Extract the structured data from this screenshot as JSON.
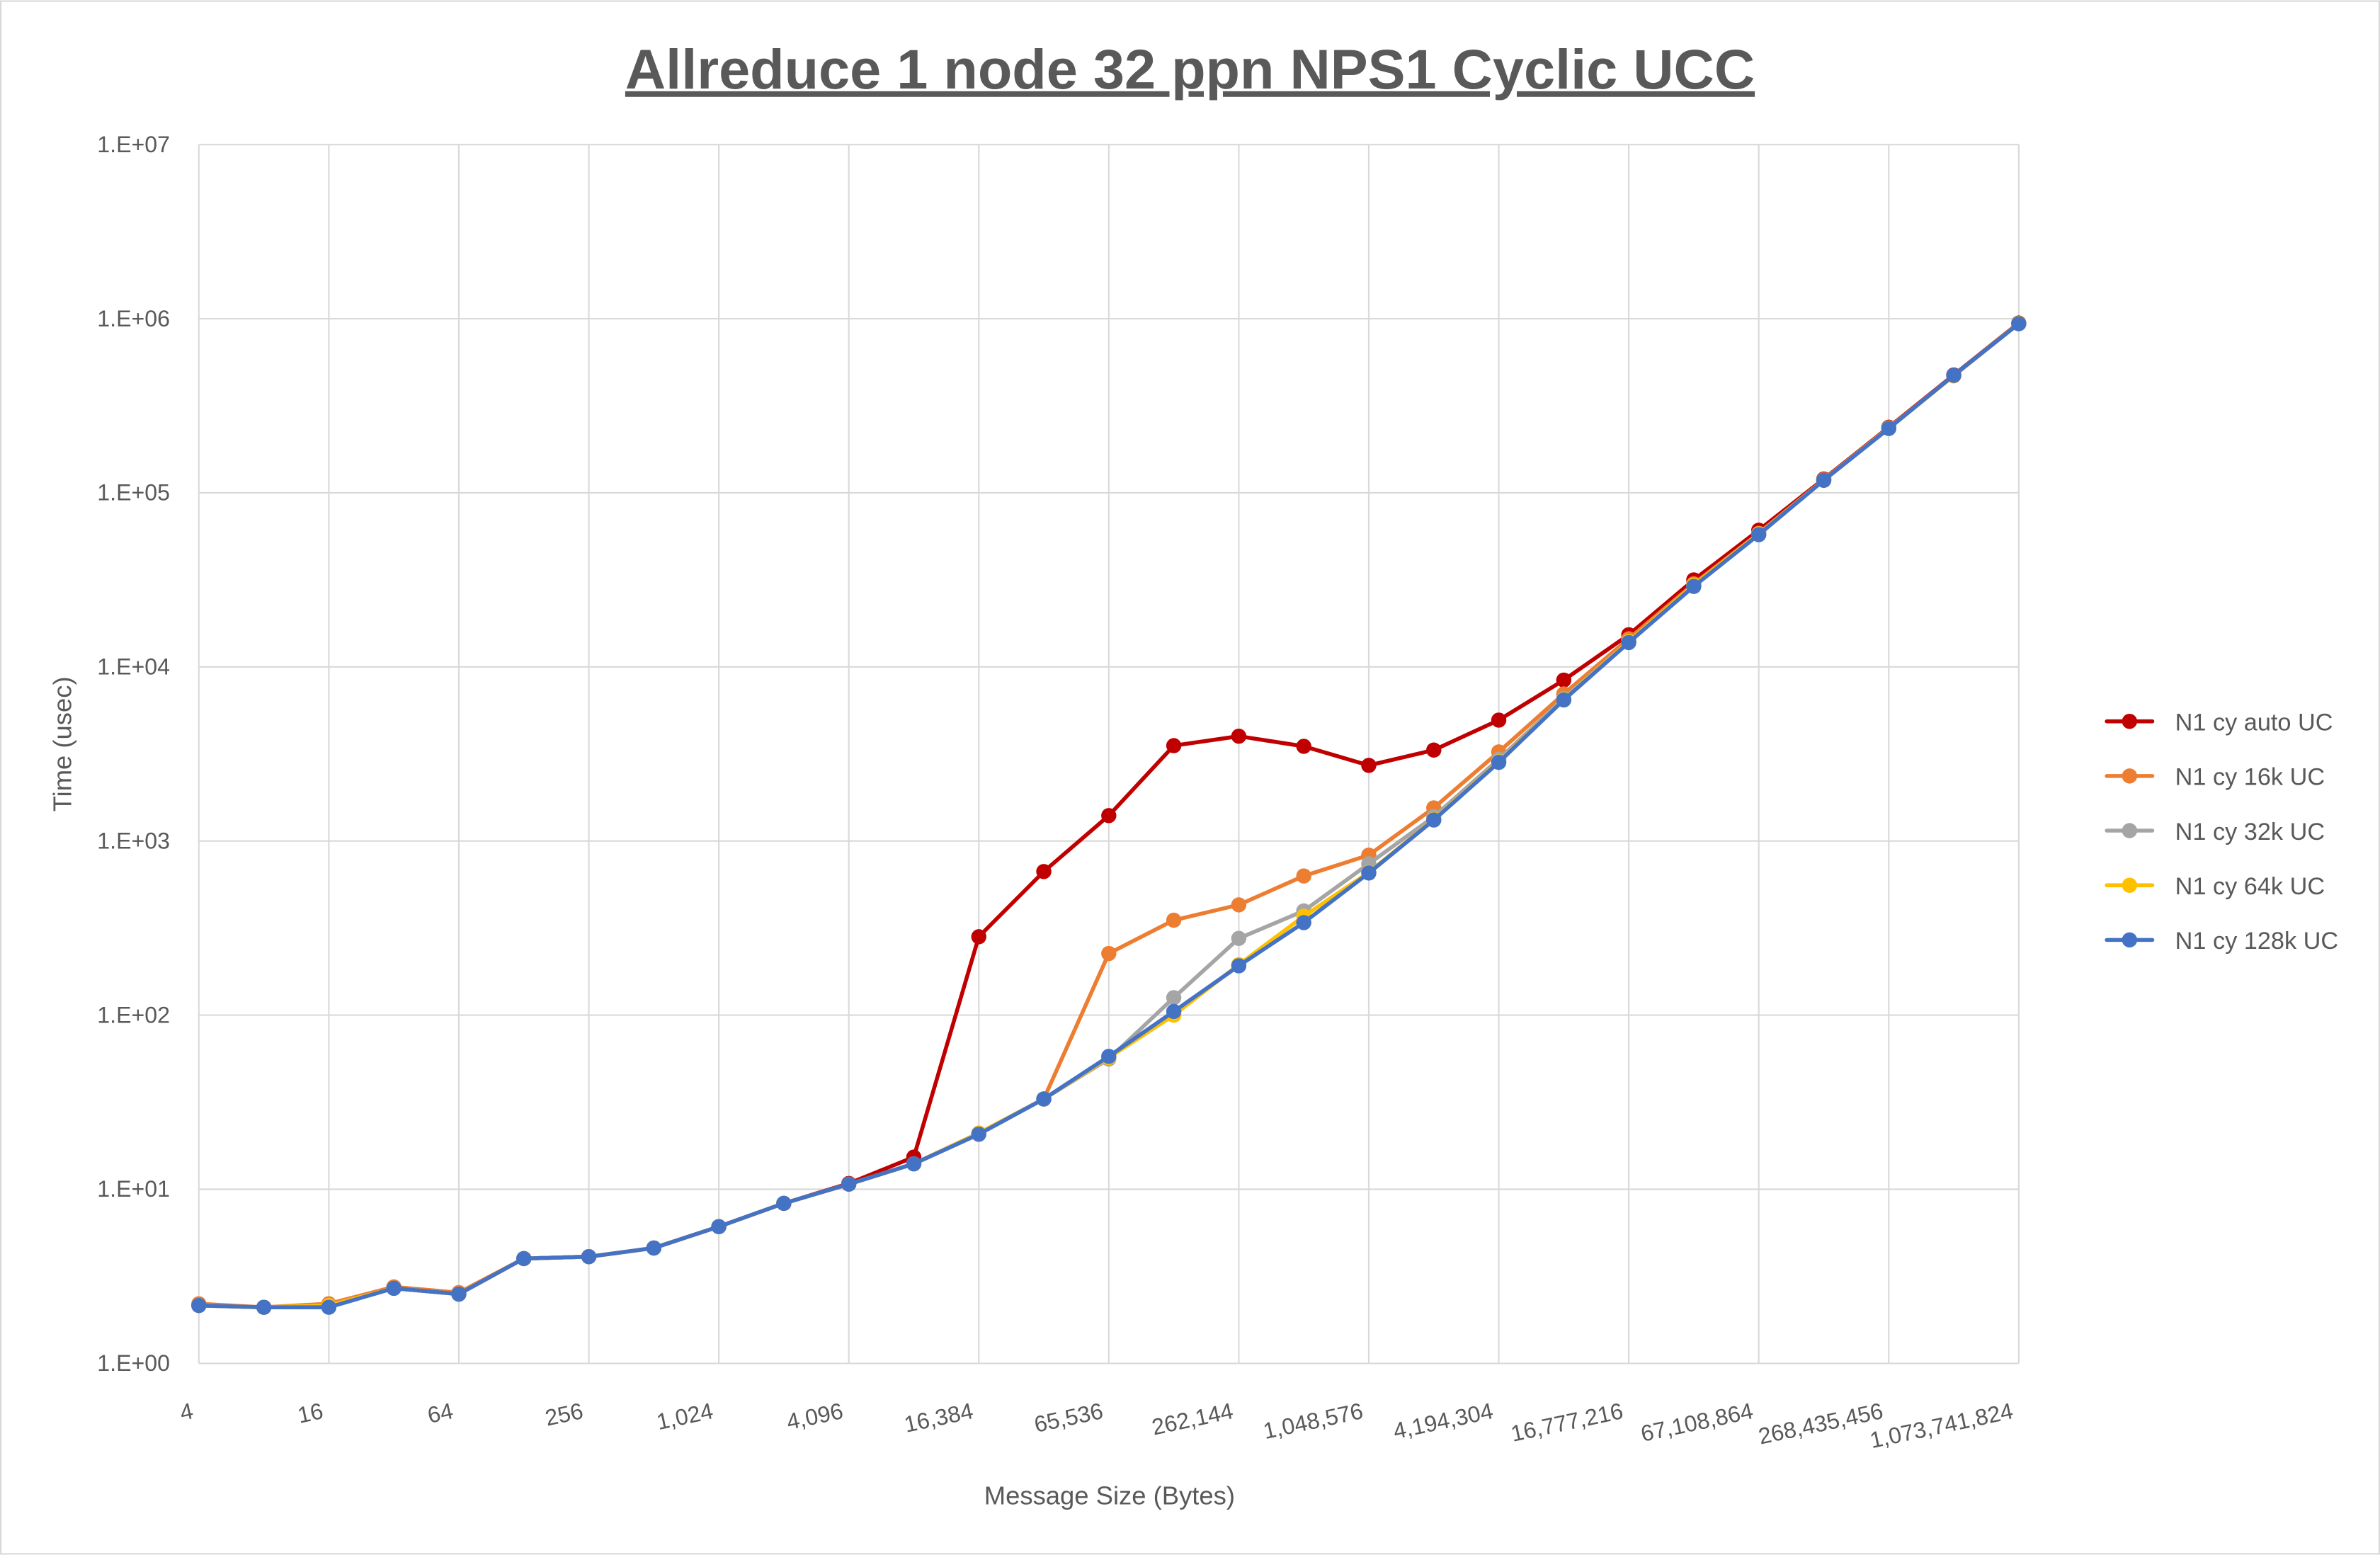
{
  "chart_data": {
    "type": "line",
    "title": "Allreduce 1 node 32 ppn NPS1 Cyclic UCC",
    "xlabel": "Message Size (Bytes)",
    "ylabel": "Time (usec)",
    "x_scale": "log2",
    "y_scale": "log10",
    "ylim": [
      1,
      10000000
    ],
    "grid": true,
    "legend_position": "right",
    "x": [
      4,
      8,
      16,
      32,
      64,
      128,
      256,
      512,
      1024,
      2048,
      4096,
      8192,
      16384,
      32768,
      65536,
      131072,
      262144,
      524288,
      1048576,
      2097152,
      4194304,
      8388608,
      16777216,
      33554432,
      67108864,
      134217728,
      268435456,
      536870912,
      1073741824
    ],
    "x_tick_labels": [
      "4",
      "16",
      "64",
      "256",
      "1,024",
      "4,096",
      "16,384",
      "65,536",
      "262,144",
      "1,048,576",
      "4,194,304",
      "16,777,216",
      "67,108,864",
      "268,435,456",
      "1,073,741,824"
    ],
    "y_tick_labels": [
      "1.E+00",
      "1.E+01",
      "1.E+02",
      "1.E+03",
      "1.E+04",
      "1.E+05",
      "1.E+06",
      "1.E+07"
    ],
    "series": [
      {
        "name": "N1 cy auto UC",
        "color": "#C00000",
        "values": [
          2.15,
          2.1,
          2.15,
          2.7,
          2.5,
          4.0,
          4.1,
          4.6,
          6.1,
          8.3,
          10.8,
          15.3,
          282,
          668,
          1400,
          3530,
          4000,
          3500,
          2720,
          3330,
          4950,
          8400,
          15300,
          31600,
          61000,
          120000,
          238000,
          475000,
          945000
        ]
      },
      {
        "name": "N1 cy 16k UC",
        "color": "#ED7D31",
        "values": [
          2.2,
          2.1,
          2.2,
          2.75,
          2.55,
          4.0,
          4.1,
          4.6,
          6.1,
          8.3,
          10.7,
          14,
          21,
          33,
          226,
          351,
          430,
          630,
          830,
          1550,
          3250,
          7000,
          14500,
          30000,
          58500,
          119000,
          236000,
          472000,
          940000
        ]
      },
      {
        "name": "N1 cy 32k UC",
        "color": "#A5A5A5",
        "values": [
          2.15,
          2.1,
          2.15,
          2.7,
          2.5,
          4.0,
          4.1,
          4.6,
          6.1,
          8.3,
          10.7,
          14,
          21,
          33,
          56,
          126,
          276,
          397,
          740,
          1380,
          2950,
          6600,
          14000,
          29500,
          58000,
          118000,
          235000,
          470000,
          940000
        ]
      },
      {
        "name": "N1 cy 64k UC",
        "color": "#FFC000",
        "values": [
          2.15,
          2.1,
          2.15,
          2.7,
          2.5,
          4.0,
          4.1,
          4.6,
          6.1,
          8.3,
          10.7,
          14,
          21,
          33,
          57,
          100,
          195,
          370,
          660,
          1330,
          2850,
          6500,
          14000,
          29500,
          58000,
          118000,
          235000,
          470000,
          940000
        ]
      },
      {
        "name": "N1 cy 128k UC",
        "color": "#4472C4",
        "values": [
          2.15,
          2.1,
          2.1,
          2.7,
          2.5,
          4.0,
          4.1,
          4.6,
          6.1,
          8.3,
          10.7,
          14,
          20.7,
          33,
          58,
          105,
          192,
          340,
          655,
          1320,
          2830,
          6460,
          13800,
          29000,
          57500,
          118000,
          234000,
          473000,
          935000
        ]
      }
    ]
  }
}
